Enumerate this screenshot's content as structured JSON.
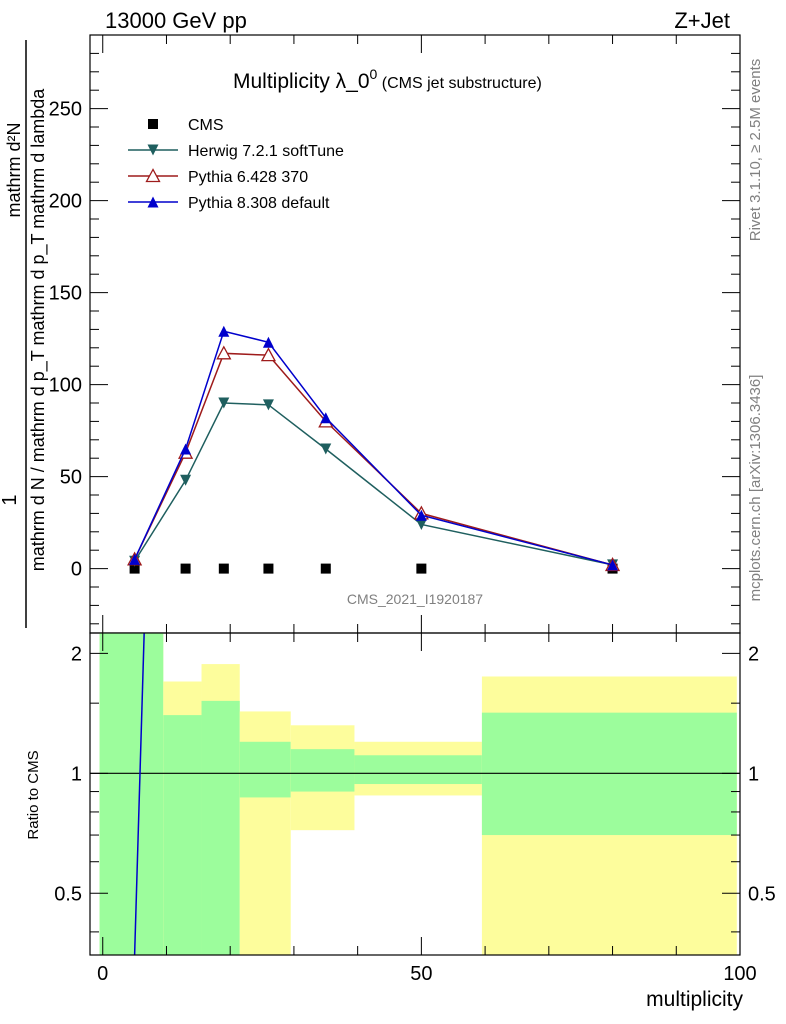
{
  "header": {
    "energy_label": "13000 GeV pp",
    "process_label": "Z+Jet"
  },
  "side_labels": {
    "rivet": "Rivet 3.1.10, ≥ 2.5M events",
    "site": "mcplots.cern.ch [arXiv:1306.3436]"
  },
  "watermark": "CMS_2021_I1920187",
  "colors": {
    "cms": "#000000",
    "herwig": "#1f5f5f",
    "pythia6": "#9e1b1b",
    "pythia8": "#0000cc",
    "band_inner": "#9cfd9c",
    "band_outer": "#fdfd9c"
  },
  "chart_data": [
    {
      "type": "line",
      "title": "Multiplicity λ_0",
      "title_sup": "0",
      "subtitle": "(CMS jet substructure)",
      "ylabel_numer": "mathrm d²N",
      "ylabel_denom": "mathrm d N / mathrm d p_T mathrm d p_T mathrm d lambda",
      "ylabel_prefix": "1",
      "xlim": [
        -2,
        100
      ],
      "ylim": [
        -35,
        290
      ],
      "yticks": [
        0,
        50,
        100,
        150,
        200,
        250
      ],
      "legend_position": "top-left",
      "series": [
        {
          "name": "CMS",
          "marker": "square",
          "line": false,
          "x": [
            5,
            13,
            19,
            26,
            35,
            50,
            80
          ],
          "y": [
            0,
            0,
            0,
            0,
            0,
            0,
            0
          ]
        },
        {
          "name": "Herwig 7.2.1 softTune",
          "marker": "triangle-down",
          "x": [
            5,
            13,
            19,
            26,
            35,
            50,
            80
          ],
          "y": [
            4,
            48,
            90,
            89,
            65,
            24,
            2
          ]
        },
        {
          "name": "Pythia 6.428 370",
          "marker": "triangle-open",
          "x": [
            5,
            13,
            19,
            26,
            35,
            50,
            80
          ],
          "y": [
            5,
            63,
            117,
            116,
            80,
            30,
            2
          ]
        },
        {
          "name": "Pythia 8.308 default",
          "marker": "triangle-up",
          "x": [
            5,
            13,
            19,
            26,
            35,
            50,
            80
          ],
          "y": [
            5,
            65,
            129,
            123,
            82,
            29,
            2
          ]
        }
      ]
    },
    {
      "type": "line",
      "ylabel": "Ratio to CMS",
      "xlabel": "multiplicity",
      "xlim": [
        -2,
        100
      ],
      "ylim": [
        0.35,
        2.25
      ],
      "xticks": [
        0,
        50,
        100
      ],
      "yticks": [
        0.5,
        1,
        2
      ],
      "reference": 1,
      "bands": [
        {
          "x0": -0.5,
          "x1": 9.5,
          "inner": [
            0.35,
            2.25
          ],
          "outer": [
            0.35,
            2.25
          ]
        },
        {
          "x0": 9.5,
          "x1": 15.5,
          "inner": [
            0.35,
            1.4
          ],
          "outer": [
            0.35,
            1.7
          ]
        },
        {
          "x0": 15.5,
          "x1": 21.5,
          "inner": [
            0.35,
            1.52
          ],
          "outer": [
            0.35,
            1.88
          ]
        },
        {
          "x0": 21.5,
          "x1": 29.5,
          "inner": [
            0.87,
            1.2
          ],
          "outer": [
            0.35,
            1.43
          ]
        },
        {
          "x0": 29.5,
          "x1": 39.5,
          "inner": [
            0.9,
            1.15
          ],
          "outer": [
            0.72,
            1.32
          ]
        },
        {
          "x0": 39.5,
          "x1": 59.5,
          "inner": [
            0.94,
            1.11
          ],
          "outer": [
            0.88,
            1.2
          ]
        },
        {
          "x0": 59.5,
          "x1": 99.5,
          "inner": [
            0.7,
            1.42
          ],
          "outer": [
            0.35,
            1.75
          ]
        }
      ],
      "series": [
        {
          "name": "Pythia 8.308 default",
          "x": [
            5,
            6.5
          ],
          "y": [
            0.35,
            2.25
          ]
        }
      ]
    }
  ]
}
